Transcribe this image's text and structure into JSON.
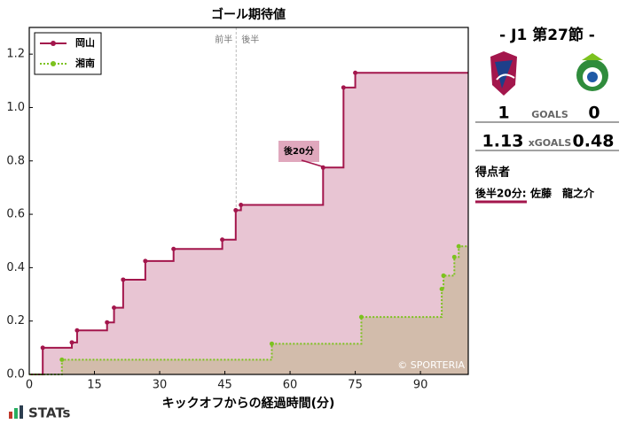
{
  "chart_data": {
    "type": "step",
    "title": "ゴール期待値",
    "x_label": "キックオフからの経過時間(分)",
    "xlim": [
      0,
      101
    ],
    "ylim": [
      0,
      1.3
    ],
    "xticks": [
      0,
      15,
      30,
      45,
      60,
      75,
      90
    ],
    "yticks": [
      {
        "value": 0,
        "label": "0.0"
      },
      0.2,
      0.4,
      0.6,
      0.8,
      {
        "value": 1,
        "label": "1.0"
      },
      1.2
    ],
    "first_half": "前半",
    "second_half": "後半",
    "half_time": 47.6,
    "annotation": "後20分",
    "credit": "© SPORTERIA",
    "legend": "upper left",
    "series": [
      {
        "name": "岡山",
        "color": "#a3164c",
        "fill": "#e8c5d3",
        "line_style": "solid",
        "x": [
          3.1,
          9.8,
          11,
          17.9,
          19.5,
          21.6,
          26.7,
          33.2,
          44.4,
          47.5,
          48.7,
          67.6,
          72.3,
          75
        ],
        "values": [
          0.1,
          0.12,
          0.165,
          0.195,
          0.25,
          0.355,
          0.425,
          0.47,
          0.505,
          0.615,
          0.635,
          0.775,
          1.075,
          1.13
        ]
      },
      {
        "name": "湘南",
        "color": "#7cc21f",
        "fill": "#d2bcab",
        "line_style": "dotted",
        "x": [
          7.5,
          55.8,
          76.4,
          94.9,
          95.3,
          97.8,
          98.8
        ],
        "values": [
          0.055,
          0.115,
          0.215,
          0.32,
          0.37,
          0.44,
          0.48
        ]
      }
    ]
  },
  "match": {
    "round": "- J1 第27節 -",
    "home_goals": 1,
    "away_goals": 0,
    "goals_label": "GOALS",
    "home_xg": 1.13,
    "away_xg": 0.48,
    "xg_label": "xGOALS",
    "scorers_title": "得点者",
    "scorer_time": "後半20分:",
    "scorer_name": "佐藤　龍之介"
  },
  "brand": "STATs"
}
